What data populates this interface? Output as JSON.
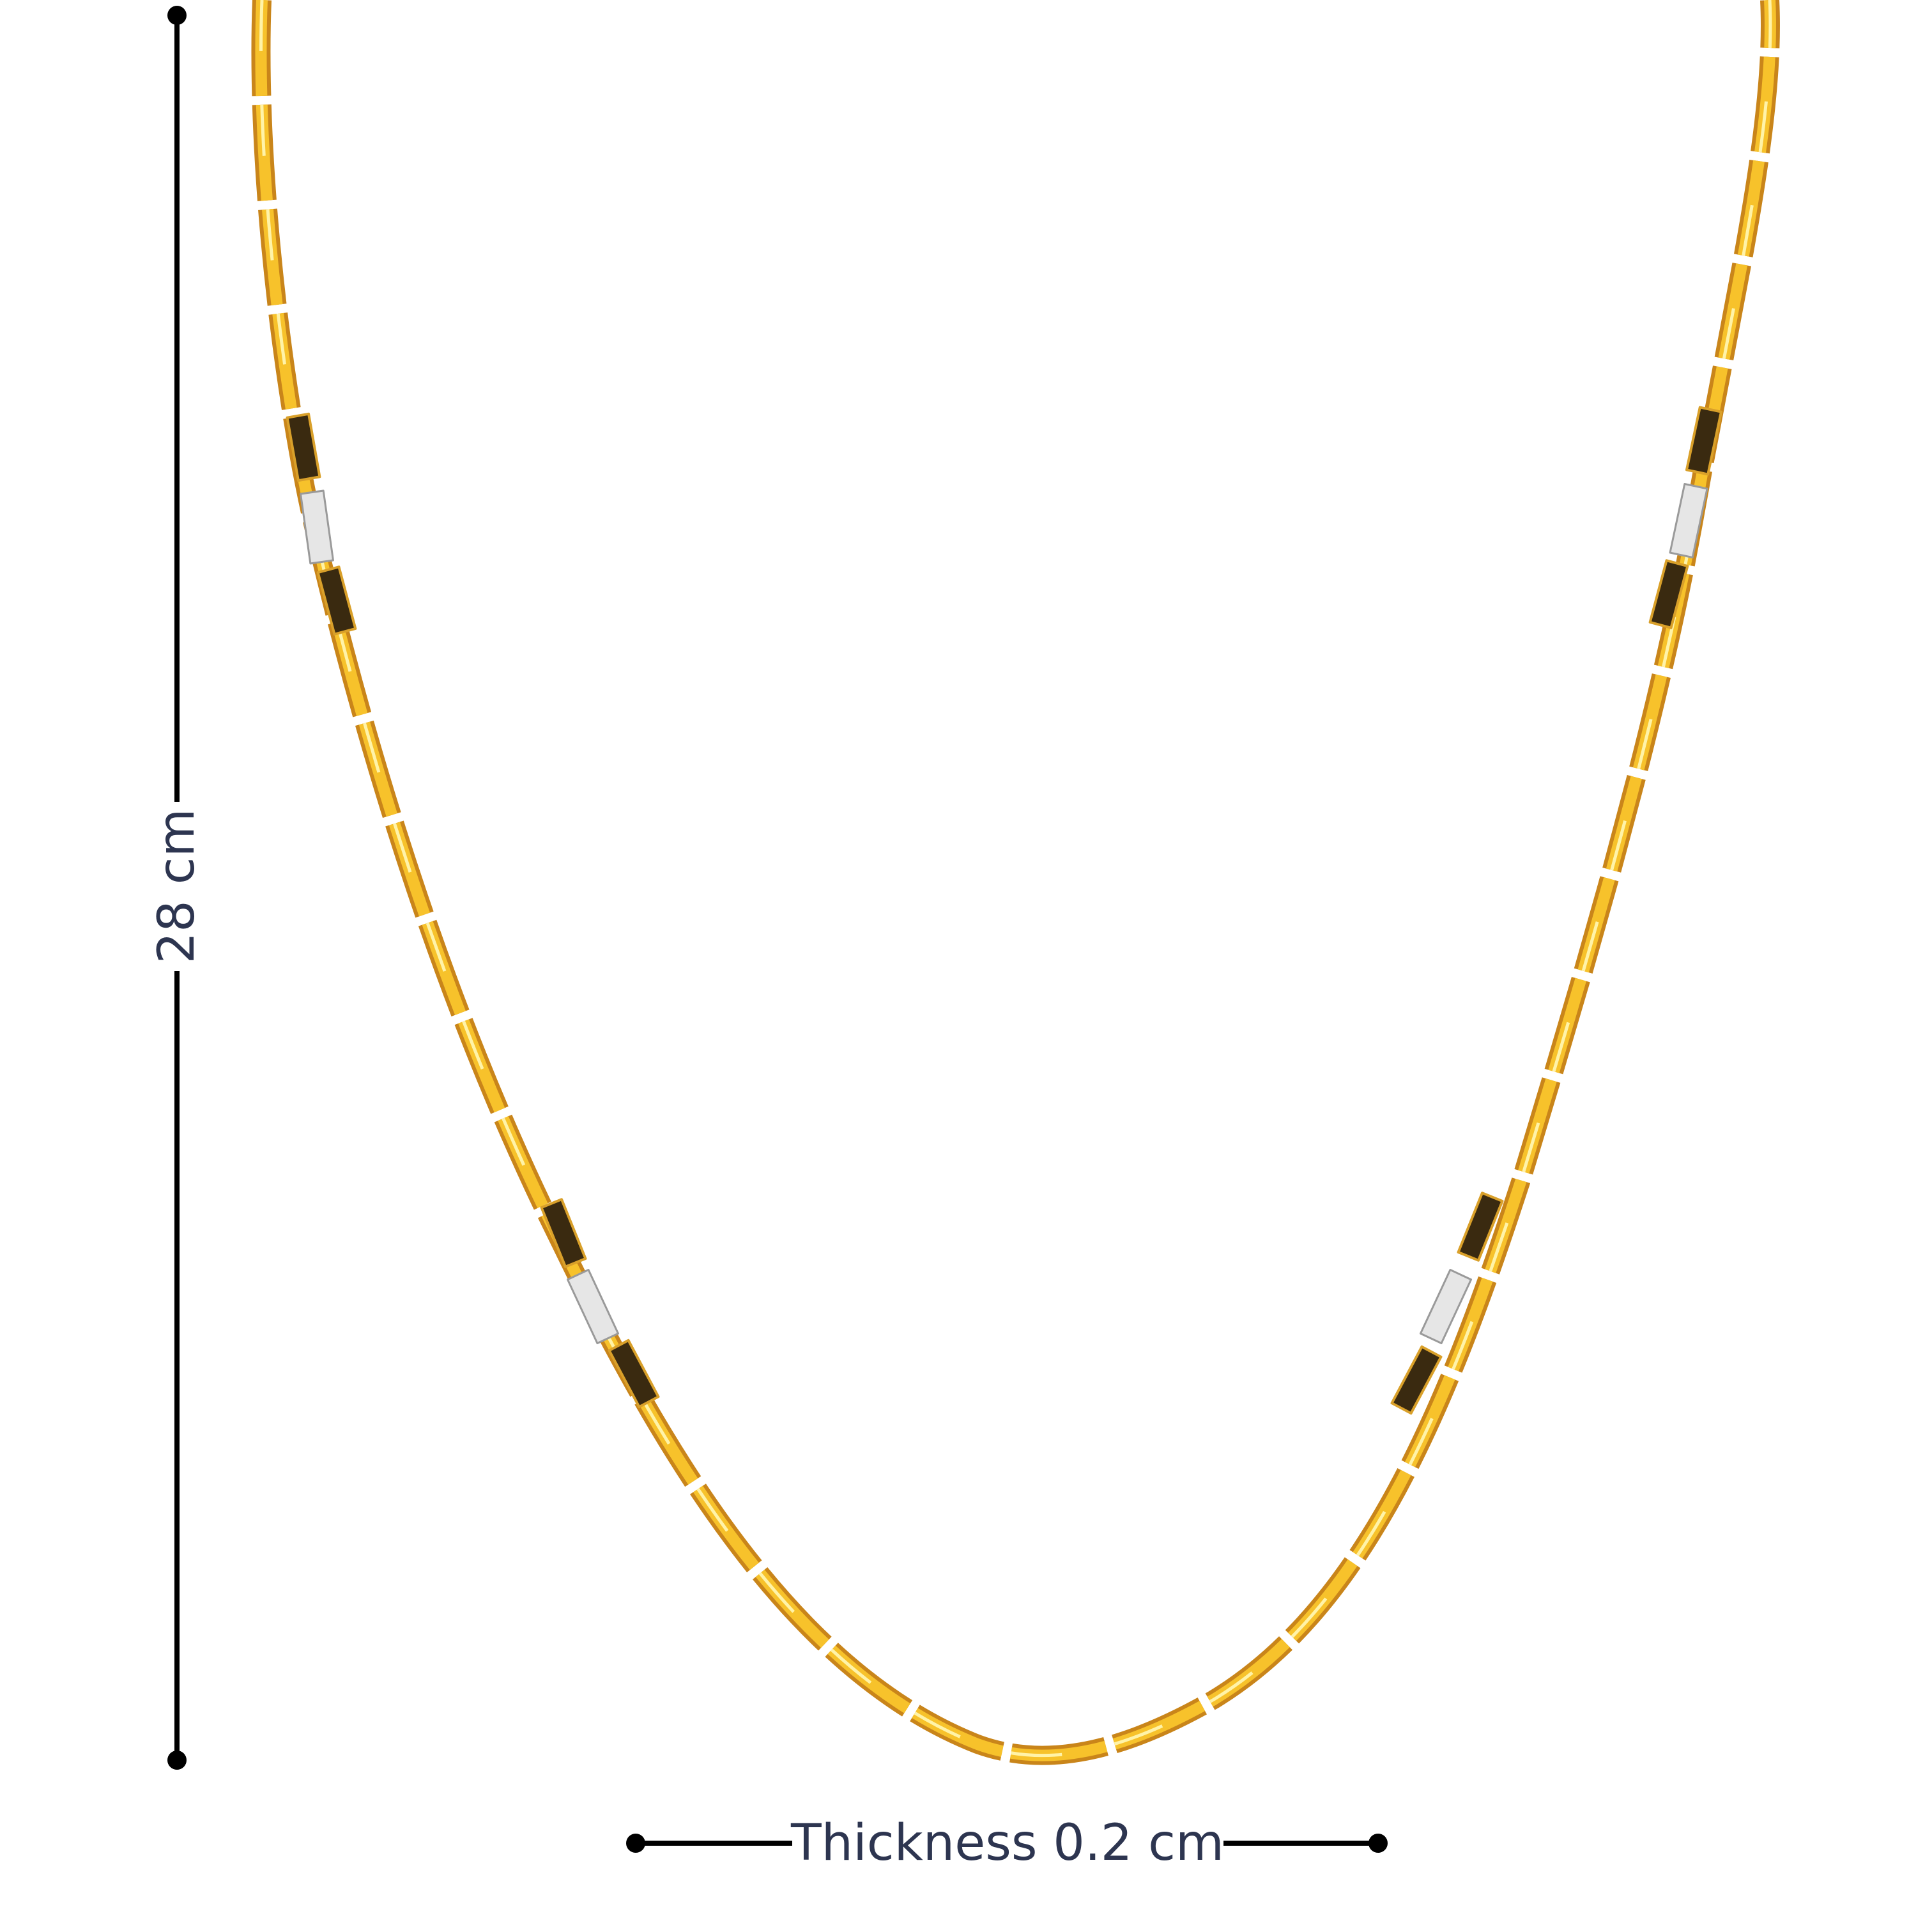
{
  "dimensions": {
    "height_label": "28 cm",
    "thickness_label": "Thickness 0.2 cm"
  }
}
